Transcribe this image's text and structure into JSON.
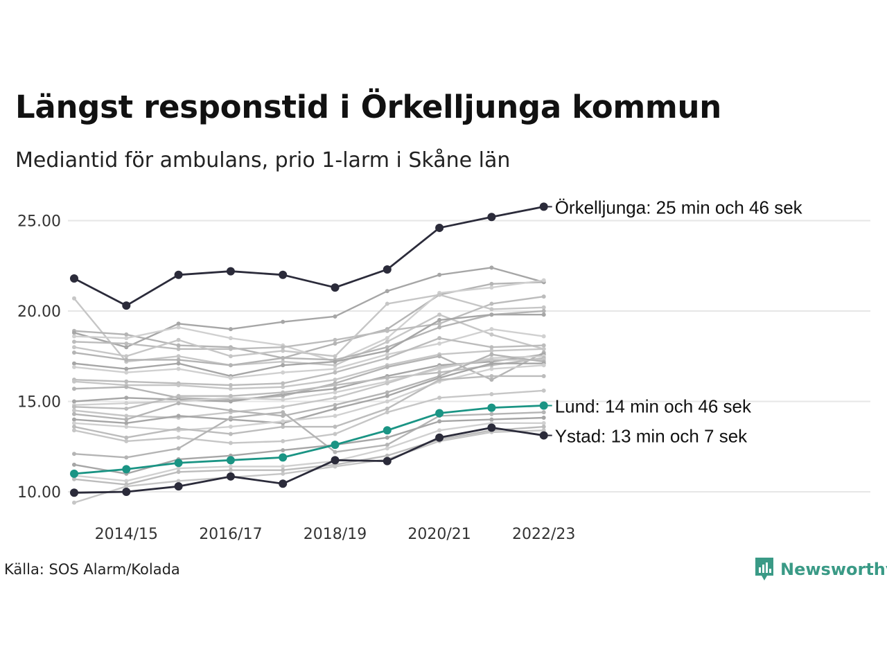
{
  "title": "Längst responstid i Örkelljunga kommun",
  "subtitle": "Mediantid för ambulans, prio 1-larm i Skåne län",
  "source": "Källa: SOS Alarm/Kolada",
  "brand": "Newsworthy",
  "colors": {
    "background": "#ffffff",
    "gridline": "#e6e6e6",
    "highlight_dark": "#2b2b3a",
    "highlight_teal": "#1a9484",
    "brand": "#3a9a86",
    "gray_lines": [
      "#c6c6c6",
      "#b4b4b4",
      "#a6a6a6",
      "#d0d0d0",
      "#bcbcbc"
    ]
  },
  "chart_data": {
    "type": "line",
    "ylim": [
      9.3,
      26.5
    ],
    "yticks": [
      10,
      15,
      20,
      25
    ],
    "ytick_labels": [
      "10.00",
      "15.00",
      "20.00",
      "25.00"
    ],
    "x": [
      "2013/14",
      "2014/15",
      "2015/16",
      "2016/17",
      "2017/18",
      "2018/19",
      "2019/20",
      "2020/21",
      "2021/22",
      "2022/23"
    ],
    "xtick_labels": [
      "2014/15",
      "2016/17",
      "2018/19",
      "2020/21",
      "2022/23"
    ],
    "grid": true,
    "highlighted": [
      {
        "name": "Örkelljunga",
        "label": "Örkelljunga: 25 min och 46 sek",
        "color": "#2b2b3a",
        "values": [
          21.8,
          20.3,
          22.0,
          22.2,
          22.0,
          21.3,
          22.3,
          24.6,
          25.2,
          25.77
        ]
      },
      {
        "name": "Lund",
        "label": "Lund: 14 min och 46 sek",
        "color": "#1a9484",
        "values": [
          11.0,
          11.25,
          11.6,
          11.75,
          11.9,
          12.6,
          13.4,
          14.35,
          14.65,
          14.77
        ]
      },
      {
        "name": "Ystad",
        "label": "Ystad: 13 min och 7 sek",
        "color": "#2b2b3a",
        "values": [
          9.95,
          10.0,
          10.3,
          10.85,
          10.45,
          11.75,
          11.7,
          13.0,
          13.55,
          13.12
        ]
      }
    ],
    "background_series": [
      [
        20.7,
        17.2,
        17.5,
        17.0,
        17.2,
        17.0,
        18.3,
        19.8,
        18.7,
        17.9
      ],
      [
        18.9,
        18.7,
        18.1,
        18.0,
        17.4,
        18.2,
        19.0,
        20.9,
        21.5,
        21.6
      ],
      [
        18.8,
        18.0,
        19.3,
        19.0,
        19.4,
        19.7,
        21.1,
        22.0,
        22.4,
        21.6
      ],
      [
        18.6,
        18.5,
        19.1,
        18.5,
        18.1,
        17.2,
        18.5,
        21.0,
        21.3,
        21.7
      ],
      [
        18.3,
        18.2,
        17.9,
        17.9,
        18.0,
        18.4,
        18.9,
        19.3,
        20.4,
        20.8
      ],
      [
        18.0,
        17.5,
        18.4,
        17.5,
        17.8,
        17.5,
        20.4,
        20.9,
        20.1,
        20.2
      ],
      [
        17.7,
        17.3,
        17.3,
        17.0,
        17.4,
        17.3,
        18.0,
        19.1,
        19.8,
        20.0
      ],
      [
        17.1,
        16.8,
        17.1,
        16.4,
        17.0,
        17.2,
        17.8,
        19.5,
        19.8,
        19.8
      ],
      [
        16.9,
        16.6,
        16.8,
        16.3,
        16.6,
        16.8,
        17.6,
        18.2,
        19.0,
        18.6
      ],
      [
        16.2,
        16.1,
        16.0,
        15.9,
        16.0,
        16.6,
        17.4,
        18.5,
        18.0,
        18.1
      ],
      [
        16.1,
        15.9,
        15.9,
        15.7,
        15.8,
        16.2,
        17.0,
        17.6,
        17.8,
        17.9
      ],
      [
        15.7,
        15.8,
        15.2,
        15.1,
        15.3,
        16.0,
        16.9,
        17.5,
        16.2,
        17.7
      ],
      [
        15.0,
        15.2,
        15.1,
        15.0,
        15.4,
        15.7,
        16.4,
        17.0,
        17.2,
        17.6
      ],
      [
        14.8,
        14.9,
        15.0,
        15.2,
        15.1,
        15.5,
        16.1,
        16.8,
        17.4,
        17.5
      ],
      [
        14.7,
        14.6,
        15.3,
        15.3,
        15.5,
        15.9,
        16.3,
        16.6,
        17.0,
        17.4
      ],
      [
        14.5,
        14.2,
        14.1,
        14.4,
        14.7,
        15.2,
        16.0,
        16.9,
        17.3,
        17.3
      ],
      [
        14.3,
        14.0,
        14.9,
        14.5,
        14.2,
        14.8,
        15.5,
        16.4,
        17.6,
        17.2
      ],
      [
        14.0,
        13.8,
        14.2,
        14.0,
        13.8,
        14.6,
        15.3,
        16.3,
        17.1,
        17.1
      ],
      [
        13.8,
        13.6,
        13.4,
        13.6,
        13.9,
        14.2,
        15.0,
        16.1,
        16.8,
        17.0
      ],
      [
        13.6,
        13.0,
        13.5,
        13.2,
        13.6,
        13.6,
        14.6,
        16.2,
        16.4,
        16.4
      ],
      [
        13.4,
        12.8,
        13.0,
        12.7,
        12.8,
        13.2,
        14.4,
        15.2,
        15.4,
        15.6
      ],
      [
        12.1,
        11.9,
        12.4,
        14.1,
        14.4,
        12.2,
        12.6,
        14.2,
        14.3,
        14.4
      ],
      [
        11.5,
        11.0,
        11.8,
        12.0,
        12.3,
        12.6,
        13.0,
        13.9,
        14.0,
        14.1
      ],
      [
        10.9,
        10.6,
        11.3,
        11.4,
        11.4,
        11.7,
        12.4,
        13.4,
        13.8,
        13.8
      ],
      [
        10.7,
        10.4,
        11.1,
        11.2,
        11.2,
        11.5,
        12.0,
        12.9,
        13.4,
        13.6
      ],
      [
        9.4,
        10.3,
        10.6,
        10.8,
        11.0,
        11.4,
        11.8,
        12.8,
        13.3,
        13.4
      ]
    ]
  }
}
